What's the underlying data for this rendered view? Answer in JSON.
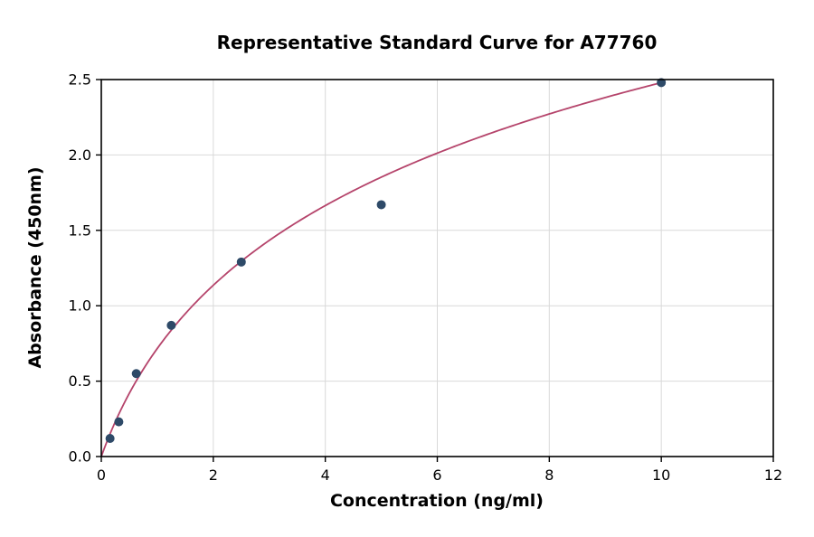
{
  "chart_data": {
    "type": "scatter",
    "title": "Representative Standard Curve for A77760",
    "xlabel": "Concentration (ng/ml)",
    "ylabel": "Absorbance (450nm)",
    "xlim": [
      0,
      12
    ],
    "ylim": [
      0,
      2.5
    ],
    "x_ticks": [
      0,
      2,
      4,
      6,
      8,
      10,
      12
    ],
    "x_tick_labels": [
      "0",
      "2",
      "4",
      "6",
      "8",
      "10",
      "12"
    ],
    "y_ticks": [
      0,
      0.5,
      1,
      1.5,
      2,
      2.5
    ],
    "y_tick_labels": [
      "0.0",
      "0.5",
      "1.0",
      "1.5",
      "2.0",
      "2.5"
    ],
    "grid": true,
    "legend": "none",
    "points": [
      {
        "x": 0.156,
        "y": 0.12
      },
      {
        "x": 0.313,
        "y": 0.23
      },
      {
        "x": 0.625,
        "y": 0.55
      },
      {
        "x": 1.25,
        "y": 0.87
      },
      {
        "x": 2.5,
        "y": 1.29
      },
      {
        "x": 5,
        "y": 1.67
      },
      {
        "x": 10,
        "y": 2.48
      }
    ],
    "curve": {
      "model": "y = a*ln(1+x)",
      "a": 1.034,
      "x_min": 0,
      "x_max": 10
    },
    "colors": {
      "point": "#2e4a68",
      "curve": "#b5446b",
      "grid": "#d9d9d9",
      "axis": "#000000",
      "background": "#ffffff"
    }
  }
}
